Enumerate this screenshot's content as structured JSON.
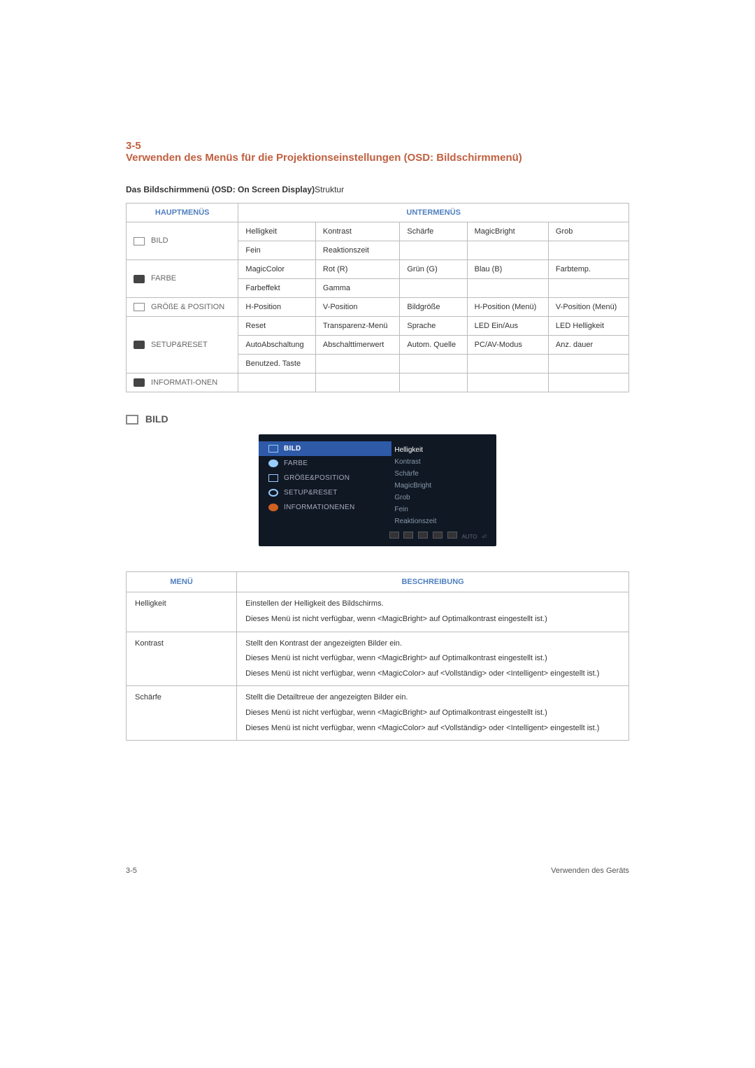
{
  "header": {
    "section_number": "3-5",
    "section_title": "Verwenden des Menüs für die Projektionseinstellungen (OSD: Bildschirmmenü)"
  },
  "structure_line": {
    "bold": "Das Bildschirmmenü (OSD: On Screen Display)",
    "light": "Struktur"
  },
  "table1": {
    "headers": {
      "main": "HAUPTMENÜS",
      "sub": "UNTERMENÜS"
    },
    "rows": [
      {
        "mainFirst": "BILD",
        "cells": [
          "Helligkeit",
          "Kontrast",
          "Schärfe",
          "MagicBright",
          "Grob"
        ]
      },
      {
        "mainFirst": "",
        "cells": [
          "Fein",
          "Reaktionszeit",
          "",
          "",
          ""
        ]
      },
      {
        "mainFirst": "FARBE",
        "cells": [
          "MagicColor",
          "Rot (R)",
          "Grün (G)",
          "Blau (B)",
          "Farbtemp."
        ]
      },
      {
        "mainFirst": "",
        "cells": [
          "Farbeffekt",
          "Gamma",
          "",
          "",
          ""
        ]
      },
      {
        "mainFirst": "GRÖßE & POSITION",
        "cells": [
          "H-Position",
          "V-Position",
          "Bildgröße",
          "H-Position (Menü)",
          "V-Position (Menü)"
        ]
      },
      {
        "mainFirst": "SETUP&RESET",
        "cells": [
          "Reset",
          "Transparenz-Menü",
          "Sprache",
          "LED Ein/Aus",
          "LED Helligkeit"
        ]
      },
      {
        "mainFirst": "",
        "cells": [
          "AutoAbschaltung",
          "Abschalttimerwert",
          "Autom. Quelle",
          "PC/AV-Modus",
          "Anz. dauer"
        ]
      },
      {
        "mainFirst": "",
        "cells": [
          "Benutzed. Taste",
          "",
          "",
          "",
          ""
        ]
      },
      {
        "mainFirst": "INFORMATI-ONEN",
        "cells": [
          "",
          "",
          "",
          "",
          ""
        ]
      }
    ],
    "main_rowspans": [
      2,
      2,
      1,
      3,
      1
    ],
    "icon_classes": [
      "ico-img",
      "ico-filled",
      "ico-expand",
      "ico-setup",
      "ico-info"
    ]
  },
  "bild_heading": "BILD",
  "screenshot": {
    "left": [
      {
        "label": "BILD",
        "icon": "rect",
        "active": true
      },
      {
        "label": "FARBE",
        "icon": "gear",
        "active": false
      },
      {
        "label": "GRÖßE&POSITION",
        "icon": "ex",
        "active": false
      },
      {
        "label": "SETUP&RESET",
        "icon": "set",
        "active": false
      },
      {
        "label": "INFORMATIONENEN",
        "icon": "info",
        "active": false
      }
    ],
    "right": [
      "Helligkeit",
      "Kontrast",
      "Schärfe",
      "MagicBright",
      "Grob",
      "Fein",
      "Reaktionszeit"
    ],
    "bottom_mini": [
      "AUTO",
      "⏎"
    ]
  },
  "table2": {
    "headers": {
      "menu": "MENÜ",
      "desc": "BESCHREIBUNG"
    },
    "rows": [
      {
        "menu": "Helligkeit",
        "lines": [
          "Einstellen der Helligkeit des Bildschirms.",
          "Dieses Menü ist nicht verfügbar, wenn <MagicBright> auf Optimalkontrast eingestellt ist.)"
        ]
      },
      {
        "menu": "Kontrast",
        "lines": [
          "Stellt den Kontrast der angezeigten Bilder ein.",
          "Dieses Menü ist nicht verfügbar, wenn <MagicBright> auf Optimalkontrast eingestellt ist.)",
          "Dieses Menü ist nicht verfügbar, wenn <MagicColor> auf <Vollständig> oder <Intelligent> eingestellt ist.)"
        ]
      },
      {
        "menu": "Schärfe",
        "lines": [
          "Stellt die Detailtreue der angezeigten Bilder ein.",
          "Dieses Menü ist nicht verfügbar, wenn <MagicBright> auf Optimalkontrast eingestellt ist.)",
          "Dieses Menü ist nicht verfügbar, wenn <MagicColor> auf <Vollständig> oder <Intelligent> eingestellt ist.)"
        ]
      }
    ]
  },
  "footer": {
    "left": "3-5",
    "right": "Verwenden des Geräts"
  },
  "colors": {
    "accent": "#c06040",
    "table_header_text": "#5080c0",
    "border": "#bbbbbb",
    "osd_bg": "#101824",
    "osd_active_bg": "#2e5aa8"
  }
}
